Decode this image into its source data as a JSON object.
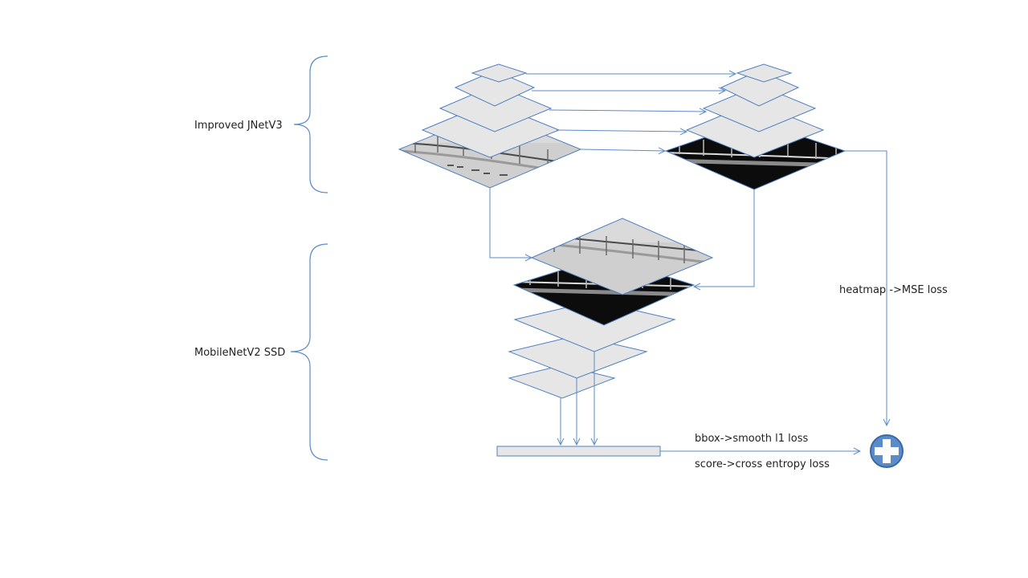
{
  "labels": {
    "jnet": "Improved JNetV3",
    "ssd": "MobileNetV2 SSD",
    "heatmap": "heatmap  ->MSE loss",
    "bbox": "bbox->smooth l1 loss",
    "score": "score->cross entropy loss"
  },
  "colors": {
    "line": "#5b8bc9",
    "layer_fill": "#e6e6e6",
    "layer_stroke": "#4f7fc0",
    "plus_fill": "#5b8bc9",
    "plus_stroke": "#3a6aa6"
  },
  "icons": {
    "sum": "plus-circle-icon"
  }
}
